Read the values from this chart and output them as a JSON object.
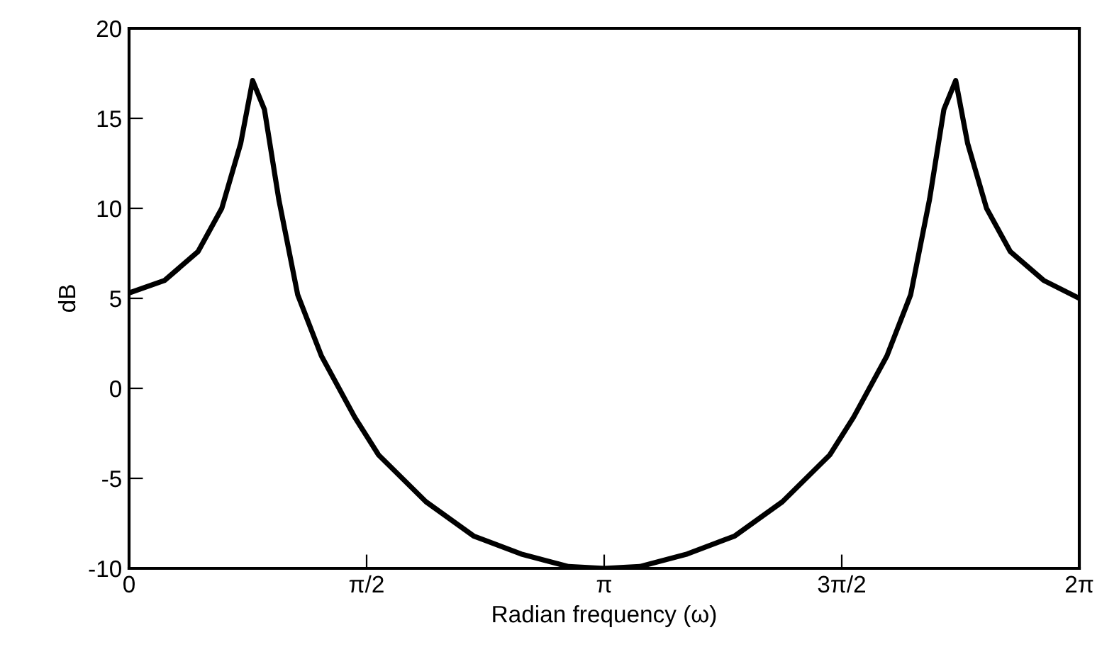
{
  "chart_data": {
    "type": "line",
    "xlabel": "Radian frequency (ω)",
    "ylabel": "dB",
    "x": [
      0,
      0.236,
      0.456,
      0.613,
      0.738,
      0.817,
      0.895,
      0.99,
      1.115,
      1.272,
      1.492,
      1.65,
      1.963,
      2.278,
      2.592,
      2.906,
      3.1416,
      3.377,
      3.691,
      4.005,
      4.32,
      4.633,
      4.791,
      5.011,
      5.168,
      5.293,
      5.388,
      5.466,
      5.545,
      5.67,
      5.827,
      6.047,
      6.2832
    ],
    "series": [
      {
        "color": "#000000",
        "values": [
          5.3,
          6.0,
          7.6,
          10.0,
          13.6,
          17.1,
          15.5,
          10.5,
          5.2,
          1.8,
          -1.6,
          -3.7,
          -6.3,
          -8.2,
          -9.2,
          -9.9,
          -10.0,
          -9.9,
          -9.2,
          -8.2,
          -6.3,
          -3.7,
          -1.6,
          1.8,
          5.2,
          10.5,
          15.5,
          17.1,
          13.6,
          10.0,
          7.6,
          6.0,
          5.0
        ]
      }
    ],
    "xlim": [
      0,
      6.2832
    ],
    "ylim": [
      -10,
      20
    ],
    "xticks": [
      0,
      {
        "value": 1.5708,
        "label": "π/2"
      },
      {
        "value": 3.1416,
        "label": "π"
      },
      {
        "value": 4.7124,
        "label": "3π/2"
      },
      {
        "value": 6.2832,
        "label": "2π"
      }
    ],
    "yticks": [
      -10,
      -5,
      0,
      5,
      10,
      15,
      20
    ],
    "grid": false,
    "legend": false,
    "marker": "none",
    "line_style": "solid"
  }
}
